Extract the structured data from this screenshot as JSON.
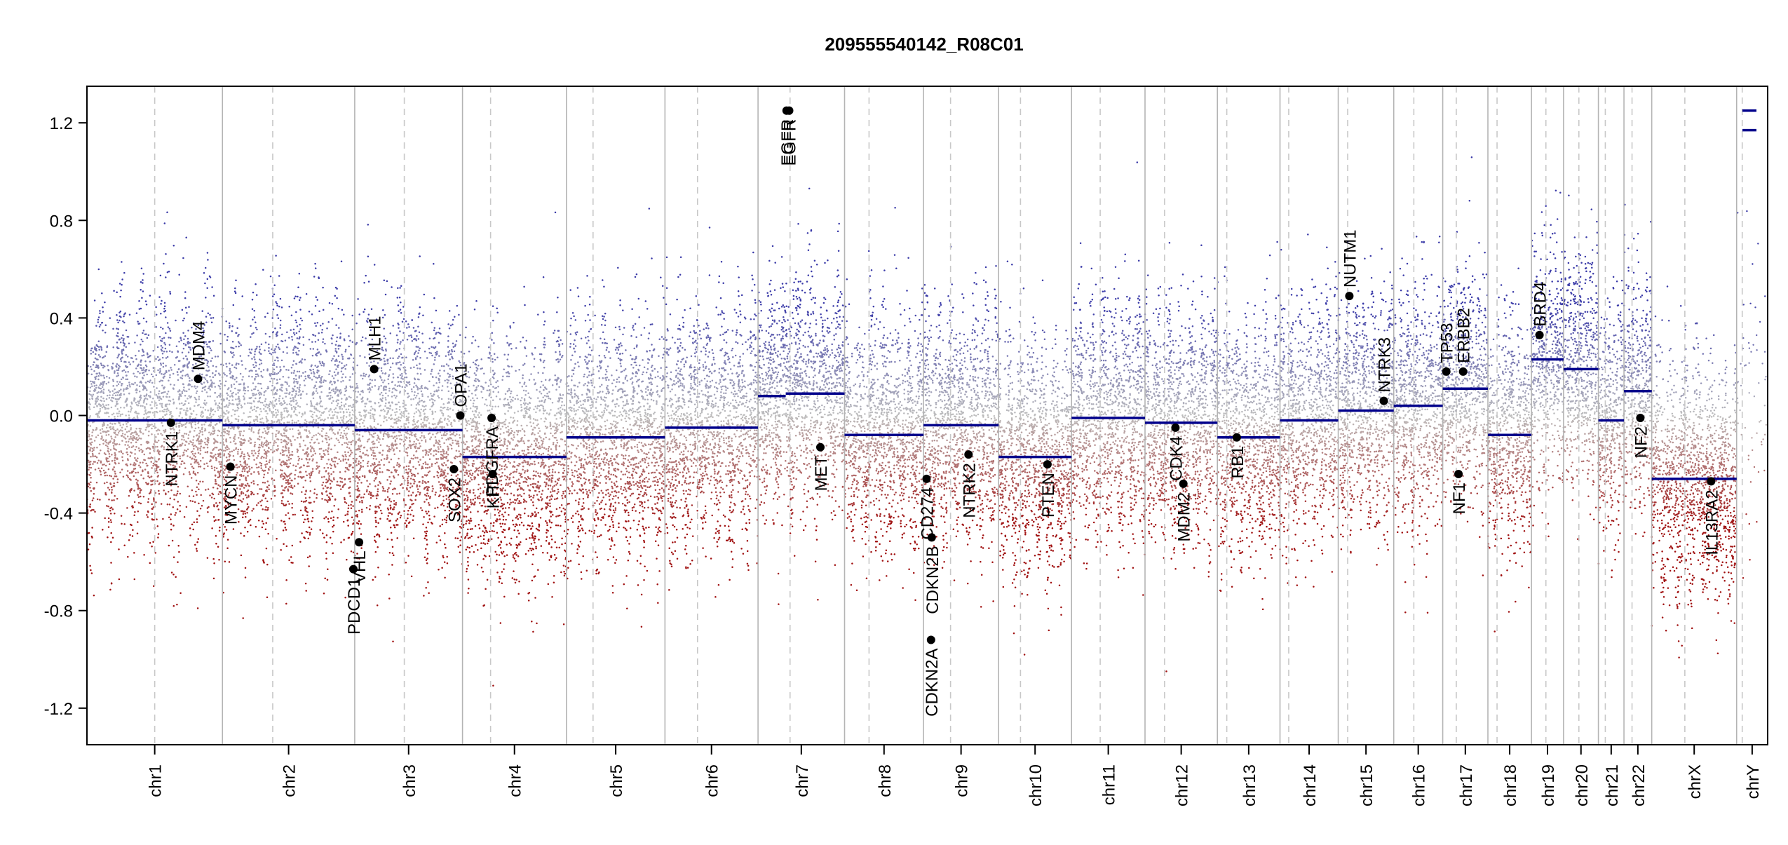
{
  "chart_data": {
    "type": "scatter",
    "title": "209555540142_R08C01",
    "xlabel": "",
    "ylabel": "",
    "ylim": [
      -1.35,
      1.35
    ],
    "y_ticks": [
      -1.2,
      -0.8,
      -0.4,
      0.0,
      0.4,
      0.8,
      1.2
    ],
    "y_tick_labels": [
      "-1.2",
      "-0.8",
      "-0.4",
      "0.0",
      "0.4",
      "0.8",
      "1.2"
    ],
    "grid": false,
    "legend": "none",
    "colors": {
      "segment": "#00008b",
      "gain_points": "#3a3aa8",
      "loss_points": "#a01010",
      "neutral_points": "#bdbdbd",
      "gene_marker": "#000000",
      "chrom_divider": "#b4b4b4",
      "centromere": "#c8c8c8"
    },
    "chromosomes": [
      {
        "name": "chr1",
        "width": 249.0,
        "centromere": 0.5
      },
      {
        "name": "chr2",
        "width": 243.0,
        "centromere": 0.38
      },
      {
        "name": "chr3",
        "width": 198.0,
        "centromere": 0.46
      },
      {
        "name": "chr4",
        "width": 191.0,
        "centromere": 0.27
      },
      {
        "name": "chr5",
        "width": 181.0,
        "centromere": 0.27
      },
      {
        "name": "chr6",
        "width": 171.0,
        "centromere": 0.35
      },
      {
        "name": "chr7",
        "width": 159.0,
        "centromere": 0.37
      },
      {
        "name": "chr8",
        "width": 145.0,
        "centromere": 0.31
      },
      {
        "name": "chr9",
        "width": 138.0,
        "centromere": 0.36
      },
      {
        "name": "chr10",
        "width": 134.0,
        "centromere": 0.3
      },
      {
        "name": "chr11",
        "width": 135.0,
        "centromere": 0.39
      },
      {
        "name": "chr12",
        "width": 133.0,
        "centromere": 0.27
      },
      {
        "name": "chr13",
        "width": 115.0,
        "centromere": 0.15
      },
      {
        "name": "chr14",
        "width": 107.0,
        "centromere": 0.15
      },
      {
        "name": "chr15",
        "width": 102.0,
        "centromere": 0.17
      },
      {
        "name": "chr16",
        "width": 90.0,
        "centromere": 0.41
      },
      {
        "name": "chr17",
        "width": 83.0,
        "centromere": 0.3
      },
      {
        "name": "chr18",
        "width": 80.0,
        "centromere": 0.21
      },
      {
        "name": "chr19",
        "width": 59.0,
        "centromere": 0.45
      },
      {
        "name": "chr20",
        "width": 64.0,
        "centromere": 0.44
      },
      {
        "name": "chr21",
        "width": 47.0,
        "centromere": 0.27
      },
      {
        "name": "chr22",
        "width": 51.0,
        "centromere": 0.29
      },
      {
        "name": "chrX",
        "width": 156.0,
        "centromere": 0.39
      },
      {
        "name": "chrY",
        "width": 57.0,
        "centromere": 0.18
      }
    ],
    "segments": [
      {
        "chr": "chr1",
        "start": 0.0,
        "end": 1.0,
        "value": -0.02
      },
      {
        "chr": "chr2",
        "start": 0.0,
        "end": 1.0,
        "value": -0.04
      },
      {
        "chr": "chr3",
        "start": 0.0,
        "end": 1.0,
        "value": -0.06
      },
      {
        "chr": "chr4",
        "start": 0.0,
        "end": 1.0,
        "value": -0.17
      },
      {
        "chr": "chr5",
        "start": 0.0,
        "end": 1.0,
        "value": -0.09
      },
      {
        "chr": "chr6",
        "start": 0.0,
        "end": 1.0,
        "value": -0.05
      },
      {
        "chr": "chr7",
        "start": 0.0,
        "end": 0.32,
        "value": 0.08
      },
      {
        "chr": "chr7",
        "start": 0.32,
        "end": 1.0,
        "value": 0.09
      },
      {
        "chr": "chr8",
        "start": 0.0,
        "end": 1.0,
        "value": -0.08
      },
      {
        "chr": "chr9",
        "start": 0.0,
        "end": 1.0,
        "value": -0.04
      },
      {
        "chr": "chr10",
        "start": 0.0,
        "end": 1.0,
        "value": -0.17
      },
      {
        "chr": "chr11",
        "start": 0.0,
        "end": 1.0,
        "value": -0.01
      },
      {
        "chr": "chr12",
        "start": 0.0,
        "end": 1.0,
        "value": -0.03
      },
      {
        "chr": "chr13",
        "start": 0.0,
        "end": 1.0,
        "value": -0.09
      },
      {
        "chr": "chr14",
        "start": 0.0,
        "end": 1.0,
        "value": -0.02
      },
      {
        "chr": "chr15",
        "start": 0.0,
        "end": 1.0,
        "value": 0.02
      },
      {
        "chr": "chr16",
        "start": 0.0,
        "end": 1.0,
        "value": 0.04
      },
      {
        "chr": "chr17",
        "start": 0.0,
        "end": 1.0,
        "value": 0.11
      },
      {
        "chr": "chr18",
        "start": 0.0,
        "end": 1.0,
        "value": -0.08
      },
      {
        "chr": "chr19",
        "start": 0.0,
        "end": 1.0,
        "value": 0.23
      },
      {
        "chr": "chr20",
        "start": 0.0,
        "end": 1.0,
        "value": 0.19
      },
      {
        "chr": "chr21",
        "start": 0.0,
        "end": 1.0,
        "value": -0.02
      },
      {
        "chr": "chr22",
        "start": 0.0,
        "end": 1.0,
        "value": 0.1
      },
      {
        "chr": "chrX",
        "start": 0.0,
        "end": 1.0,
        "value": -0.26
      },
      {
        "chr": "chrY",
        "start": 0.0,
        "end": 1.0,
        "value": 1.17
      },
      {
        "chr": "chrY",
        "start": 0.0,
        "end": 1.0,
        "value": 1.25
      }
    ],
    "genes": [
      {
        "name": "NTRK1",
        "chr": "chr1",
        "pos": 0.62,
        "value": -0.03,
        "label_side": "below"
      },
      {
        "name": "MDM4",
        "chr": "chr1",
        "pos": 0.82,
        "value": 0.15,
        "label_side": "above"
      },
      {
        "name": "MYCN",
        "chr": "chr2",
        "pos": 0.06,
        "value": -0.21,
        "label_side": "below"
      },
      {
        "name": "PDCD1",
        "chr": "chr2",
        "pos": 0.99,
        "value": -0.63,
        "label_side": "below"
      },
      {
        "name": "VHL",
        "chr": "chr3",
        "pos": 0.04,
        "value": -0.52,
        "label_side": "below"
      },
      {
        "name": "MLH1",
        "chr": "chr3",
        "pos": 0.18,
        "value": 0.19,
        "label_side": "above"
      },
      {
        "name": "SOX2",
        "chr": "chr3",
        "pos": 0.92,
        "value": -0.22,
        "label_side": "below"
      },
      {
        "name": "OPA1",
        "chr": "chr3",
        "pos": 0.98,
        "value": 0.0,
        "label_side": "above"
      },
      {
        "name": "PDGFRA",
        "chr": "chr4",
        "pos": 0.28,
        "value": -0.01,
        "label_side": "below"
      },
      {
        "name": "KIT",
        "chr": "chr4",
        "pos": 0.29,
        "value": -0.24,
        "label_side": "below"
      },
      {
        "name": "EGFR",
        "chr": "chr7",
        "pos": 0.33,
        "value": 1.25,
        "label_side": "below"
      },
      {
        "name": "EGFR",
        "chr": "chr7",
        "pos": 0.36,
        "value": 1.25,
        "label_side": "below"
      },
      {
        "name": "MET",
        "chr": "chr7",
        "pos": 0.72,
        "value": -0.13,
        "label_side": "below"
      },
      {
        "name": "CD274",
        "chr": "chr9",
        "pos": 0.04,
        "value": -0.26,
        "label_side": "below"
      },
      {
        "name": "CDKN2A",
        "chr": "chr9",
        "pos": 0.1,
        "value": -0.92,
        "label_side": "below"
      },
      {
        "name": "CDKN2B",
        "chr": "chr9",
        "pos": 0.11,
        "value": -0.5,
        "label_side": "below"
      },
      {
        "name": "NTRK2",
        "chr": "chr9",
        "pos": 0.6,
        "value": -0.16,
        "label_side": "below"
      },
      {
        "name": "PTEN",
        "chr": "chr10",
        "pos": 0.67,
        "value": -0.2,
        "label_side": "below"
      },
      {
        "name": "CDK4",
        "chr": "chr12",
        "pos": 0.42,
        "value": -0.05,
        "label_side": "below"
      },
      {
        "name": "MDM2",
        "chr": "chr12",
        "pos": 0.53,
        "value": -0.28,
        "label_side": "below"
      },
      {
        "name": "RB1",
        "chr": "chr13",
        "pos": 0.31,
        "value": -0.09,
        "label_side": "below"
      },
      {
        "name": "NUTM1",
        "chr": "chr15",
        "pos": 0.2,
        "value": 0.49,
        "label_side": "above"
      },
      {
        "name": "NTRK3",
        "chr": "chr15",
        "pos": 0.82,
        "value": 0.06,
        "label_side": "above"
      },
      {
        "name": "TP53",
        "chr": "chr17",
        "pos": 0.08,
        "value": 0.18,
        "label_side": "above"
      },
      {
        "name": "ERBB2",
        "chr": "chr17",
        "pos": 0.45,
        "value": 0.18,
        "label_side": "above"
      },
      {
        "name": "NF1",
        "chr": "chr17",
        "pos": 0.35,
        "value": -0.24,
        "label_side": "below"
      },
      {
        "name": "BRD4",
        "chr": "chr19",
        "pos": 0.25,
        "value": 0.33,
        "label_side": "above"
      },
      {
        "name": "NF2",
        "chr": "chr22",
        "pos": 0.59,
        "value": -0.01,
        "label_side": "below"
      },
      {
        "name": "IL13RA2",
        "chrom": "chrX",
        "chr": "chrX",
        "pos": 0.7,
        "value": -0.27,
        "label_side": "below"
      }
    ]
  }
}
